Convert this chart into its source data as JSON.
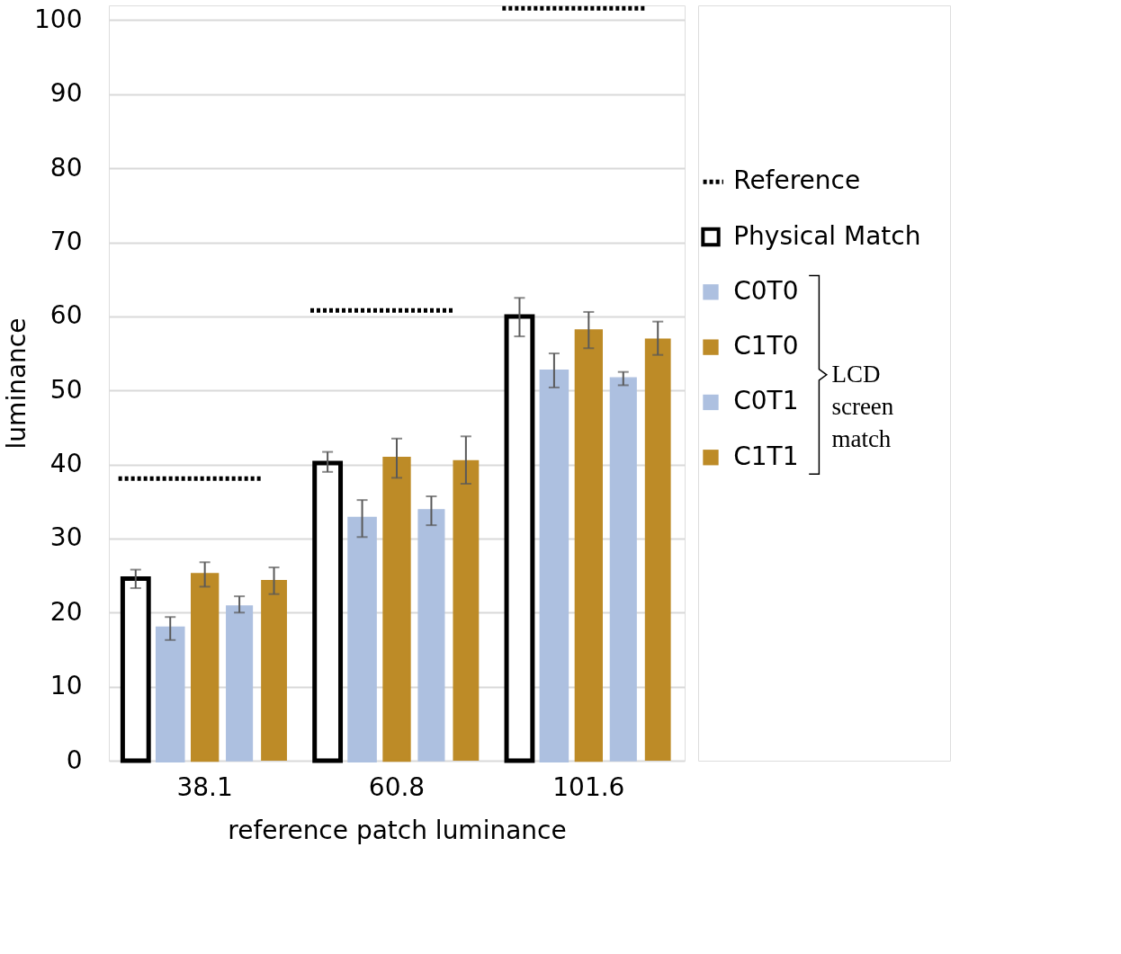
{
  "chart_data": {
    "type": "bar",
    "xlabel": "reference patch luminance",
    "ylabel": "luminance",
    "categories": [
      "38.1",
      "60.8",
      "101.6"
    ],
    "series": [
      {
        "name": "Physical Match",
        "color": "#ffffff",
        "values": [
          24.6,
          40.2,
          60.0
        ],
        "errors": [
          [
            23.3,
            25.8
          ],
          [
            39.0,
            41.7
          ],
          [
            57.3,
            62.5
          ]
        ]
      },
      {
        "name": "C0T0",
        "color": "#adc0e0",
        "values": [
          17.9,
          32.7,
          52.6
        ],
        "errors": [
          [
            16.3,
            19.4
          ],
          [
            30.2,
            35.2
          ],
          [
            50.4,
            55.0
          ]
        ]
      },
      {
        "name": "C1T0",
        "color": "#bd8b27",
        "values": [
          25.2,
          40.9,
          58.1
        ],
        "errors": [
          [
            23.5,
            26.8
          ],
          [
            38.2,
            43.5
          ],
          [
            55.7,
            60.6
          ]
        ]
      },
      {
        "name": "C0T1",
        "color": "#adc0e0",
        "values": [
          20.9,
          33.9,
          51.7
        ],
        "errors": [
          [
            20.0,
            22.2
          ],
          [
            31.8,
            35.7
          ],
          [
            50.7,
            52.5
          ]
        ]
      },
      {
        "name": "C1T1",
        "color": "#bd8b27",
        "values": [
          24.4,
          40.6,
          57.0
        ],
        "errors": [
          [
            22.5,
            26.1
          ],
          [
            37.4,
            43.8
          ],
          [
            54.8,
            59.3
          ]
        ]
      }
    ],
    "ref_lines": [
      {
        "axis": "y",
        "value": 38.1,
        "label": "Reference",
        "color": "#000000",
        "line_style": "dotted"
      },
      {
        "axis": "y",
        "value": 60.8,
        "label": null,
        "color": "#000000",
        "line_style": "dotted"
      },
      {
        "axis": "y",
        "value": 101.6,
        "label": null,
        "color": "#000000",
        "line_style": "dotted"
      }
    ],
    "ylim": [
      0,
      102
    ],
    "yticks": [
      0,
      10,
      20,
      30,
      40,
      50,
      60,
      70,
      80,
      90,
      100
    ],
    "grid": "y",
    "legend": "right",
    "annotations": [
      "LCD screen match"
    ]
  }
}
